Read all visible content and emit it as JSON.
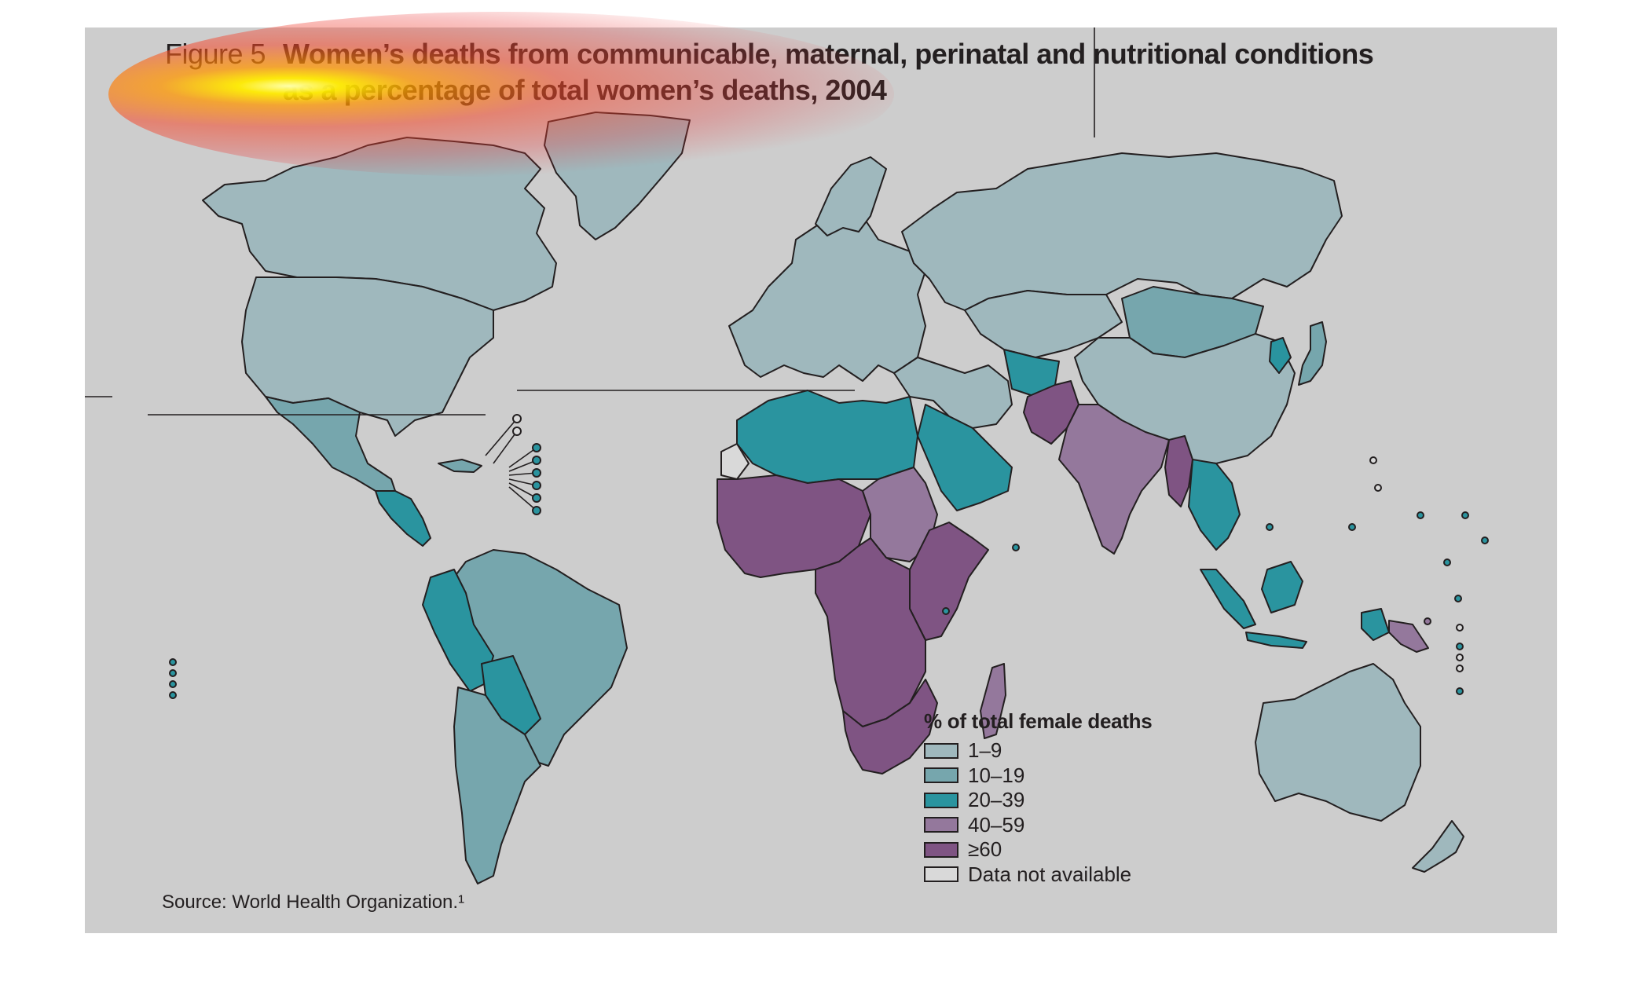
{
  "figure": {
    "label": "Figure 5",
    "title_line1": "Women’s deaths from communicable, maternal, perinatal and nutritional conditions",
    "title_line2": "as a percentage of total women’s deaths, 2004",
    "source": "Source: World Health Organization.¹"
  },
  "legend": {
    "title": "% of total female deaths",
    "items": [
      {
        "label": "1–9",
        "color": "#9fb8bd"
      },
      {
        "label": "10–19",
        "color": "#76a6ad"
      },
      {
        "label": "20–39",
        "color": "#2a949f"
      },
      {
        "label": "40–59",
        "color": "#94789c"
      },
      {
        "label": "≥60",
        "color": "#7f5483"
      },
      {
        "label": "Data not available",
        "color": "#d9d9d9"
      }
    ]
  },
  "colors": {
    "background": "#cdcdcd",
    "border": "#231f20",
    "glow_overlay": [
      "#ffffaa",
      "#ffeb00",
      "#f54628"
    ]
  },
  "map_regions": [
    {
      "name": "Canada",
      "category": "1–9"
    },
    {
      "name": "United States",
      "category": "1–9"
    },
    {
      "name": "Greenland",
      "category": "1–9"
    },
    {
      "name": "Mexico",
      "category": "10–19"
    },
    {
      "name": "Central America",
      "category": "20–39"
    },
    {
      "name": "Brazil",
      "category": "10–19"
    },
    {
      "name": "Peru",
      "category": "20–39"
    },
    {
      "name": "Bolivia",
      "category": "20–39"
    },
    {
      "name": "Argentina",
      "category": "10–19"
    },
    {
      "name": "Europe",
      "category": "1–9"
    },
    {
      "name": "Russia",
      "category": "1–9"
    },
    {
      "name": "Mongolia",
      "category": "10–19"
    },
    {
      "name": "China",
      "category": "1–9"
    },
    {
      "name": "India",
      "category": "40–59"
    },
    {
      "name": "Pakistan",
      "category": "≥60"
    },
    {
      "name": "Afghanistan",
      "category": "≥60"
    },
    {
      "name": "Saudi Arabia",
      "category": "20–39"
    },
    {
      "name": "North Africa",
      "category": "20–39"
    },
    {
      "name": "Western Sahara",
      "category": "Data not available"
    },
    {
      "name": "Sub-Saharan Africa",
      "category": "≥60"
    },
    {
      "name": "Sudan",
      "category": "40–59"
    },
    {
      "name": "Madagascar",
      "category": "40–59"
    },
    {
      "name": "Myanmar",
      "category": "≥60"
    },
    {
      "name": "South-East Asia",
      "category": "20–39"
    },
    {
      "name": "Indonesia",
      "category": "20–39"
    },
    {
      "name": "Papua New Guinea",
      "category": "40–59"
    },
    {
      "name": "Australia",
      "category": "1–9"
    },
    {
      "name": "New Zealand",
      "category": "1–9"
    },
    {
      "name": "Japan",
      "category": "10–19"
    }
  ]
}
